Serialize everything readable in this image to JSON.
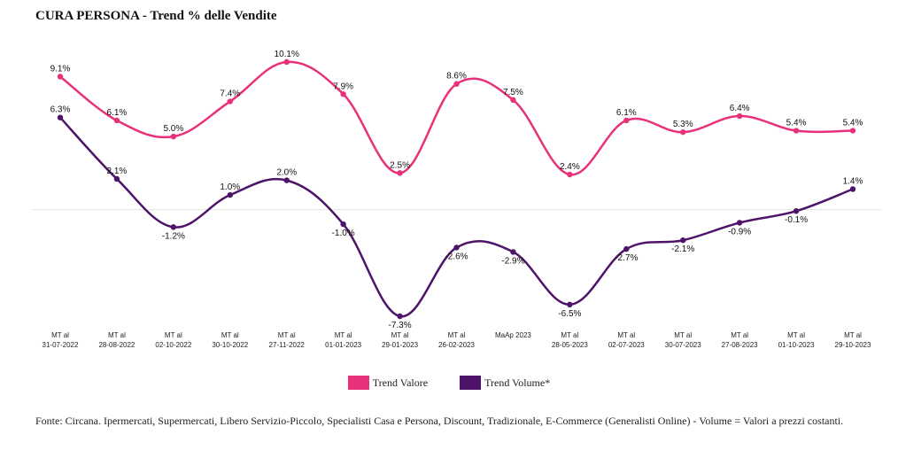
{
  "chart_data": {
    "type": "line",
    "title": "CURA PERSONA - Trend % delle Vendite",
    "categories": [
      [
        "MT al",
        "31-07-2022"
      ],
      [
        "MT al",
        "28-08-2022"
      ],
      [
        "MT al",
        "02-10-2022"
      ],
      [
        "MT al",
        "30-10-2022"
      ],
      [
        "MT al",
        "27-11-2022"
      ],
      [
        "MT al",
        "01-01-2023"
      ],
      [
        "MT al",
        "29-01-2023"
      ],
      [
        "MT al",
        "26-02-2023"
      ],
      [
        "MaAp 2023"
      ],
      [
        "MT al",
        "28-05-2023"
      ],
      [
        "MT al",
        "02-07-2023"
      ],
      [
        "MT al",
        "30-07-2023"
      ],
      [
        "MT al",
        "27-08-2023"
      ],
      [
        "MT al",
        "01-10-2023"
      ],
      [
        "MT al",
        "29-10-2023"
      ]
    ],
    "series": [
      {
        "name": "Trend Valore",
        "color": "#e8317a",
        "values": [
          9.1,
          6.1,
          5.0,
          7.4,
          10.1,
          7.9,
          2.5,
          8.6,
          7.5,
          2.4,
          6.1,
          5.3,
          6.4,
          5.4,
          5.4
        ],
        "labels": [
          "9.1%",
          "6.1%",
          "5.0%",
          "7.4%",
          "10.1%",
          "7.9%",
          "2.5%",
          "8.6%",
          "7.5%",
          "2.4%",
          "6.1%",
          "5.3%",
          "6.4%",
          "5.4%",
          "5.4%"
        ]
      },
      {
        "name": "Trend Volume*",
        "color": "#4e1469",
        "values": [
          6.3,
          2.1,
          -1.2,
          1.0,
          2.0,
          -1.0,
          -7.3,
          -2.6,
          -2.9,
          -6.5,
          -2.7,
          -2.1,
          -0.9,
          -0.1,
          1.4
        ],
        "labels": [
          "6.3%",
          "2.1%",
          "-1.2%",
          "1.0%",
          "2.0%",
          "-1.0%",
          "-7.3%",
          "-2.6%",
          "-2.9%",
          "-6.5%",
          "-2.7%",
          "-2.1%",
          "-0.9%",
          "-0.1%",
          "1.4%"
        ]
      }
    ],
    "ylim": [
      -7.3,
      10.1
    ],
    "grid": false,
    "legend_position": "bottom"
  },
  "footer": {
    "source": "Fonte: Circana. Ipermercati, Supermercati, Libero Servizio-Piccolo, Specialisti Casa e Persona, Discount, Tradizionale, E-Commerce (Generalisti Online) - Volume = Valori a prezzi costanti."
  }
}
